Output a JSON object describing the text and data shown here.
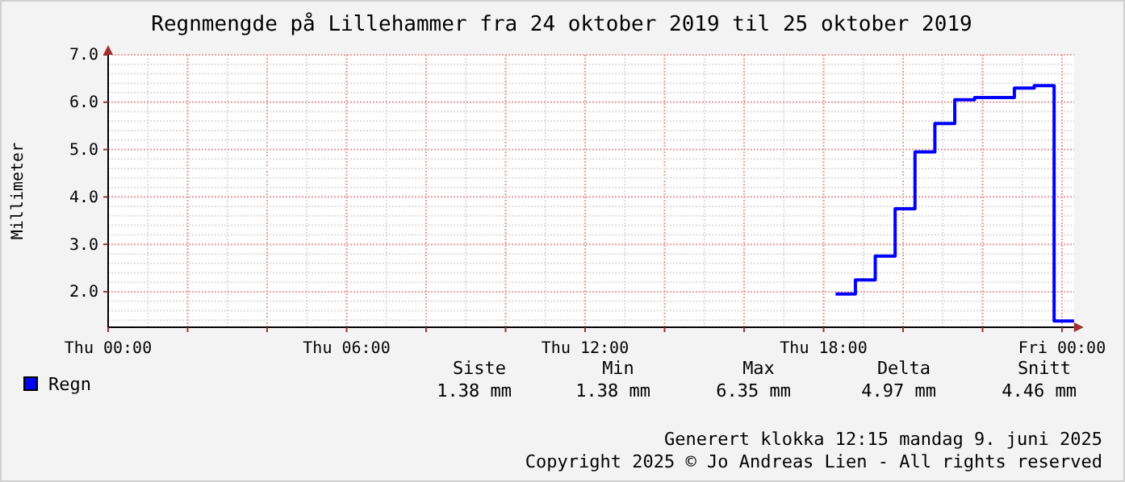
{
  "chart_data": {
    "type": "step",
    "title": "Regnmengde på Lillehammer fra 24 oktober 2019 til 25 oktober 2019",
    "ylabel": "Millimeter",
    "x": [
      "2019-10-24T18:18",
      "2019-10-24T18:48",
      "2019-10-24T19:18",
      "2019-10-24T19:48",
      "2019-10-24T20:18",
      "2019-10-24T20:48",
      "2019-10-24T21:18",
      "2019-10-24T21:48",
      "2019-10-24T22:18",
      "2019-10-24T22:48",
      "2019-10-24T23:18",
      "2019-10-24T23:48",
      "2019-10-25T00:18"
    ],
    "series": [
      {
        "name": "Regn",
        "color": "#0000ff",
        "values": [
          1.95,
          2.25,
          2.75,
          3.75,
          4.95,
          5.55,
          6.05,
          6.1,
          6.1,
          6.3,
          6.35,
          1.38,
          1.38
        ]
      }
    ],
    "xlim": [
      "2019-10-24T00:00",
      "2019-10-25T00:18"
    ],
    "xticks": [
      {
        "value": "2019-10-24T00:00",
        "label": "Thu 00:00"
      },
      {
        "value": "2019-10-24T02:00",
        "label": null
      },
      {
        "value": "2019-10-24T04:00",
        "label": null
      },
      {
        "value": "2019-10-24T06:00",
        "label": "Thu 06:00"
      },
      {
        "value": "2019-10-24T08:00",
        "label": null
      },
      {
        "value": "2019-10-24T10:00",
        "label": null
      },
      {
        "value": "2019-10-24T12:00",
        "label": "Thu 12:00"
      },
      {
        "value": "2019-10-24T14:00",
        "label": null
      },
      {
        "value": "2019-10-24T16:00",
        "label": null
      },
      {
        "value": "2019-10-24T18:00",
        "label": "Thu 18:00"
      },
      {
        "value": "2019-10-24T20:00",
        "label": null
      },
      {
        "value": "2019-10-24T22:00",
        "label": null
      },
      {
        "value": "2019-10-25T00:00",
        "label": "Fri 00:00"
      }
    ],
    "ylim": [
      1.25,
      7.0
    ],
    "yticks": [
      {
        "value": 2,
        "label": "2.0"
      },
      {
        "value": 3,
        "label": "3.0"
      },
      {
        "value": 4,
        "label": "4.0"
      },
      {
        "value": 5,
        "label": "5.0"
      },
      {
        "value": 6,
        "label": "6.0"
      },
      {
        "value": 7,
        "label": "7.0"
      }
    ],
    "grid": true,
    "legend": "bottom",
    "line_style": "solid",
    "marker": "none",
    "annotations": [
      "Siste",
      "Min",
      "Max",
      "Delta",
      "Snitt",
      "1.38 mm",
      "1.38 mm",
      "6.35 mm",
      "4.97 mm",
      "4.46 mm",
      "Generert klokka 12:15 mandag 9. juni 2025",
      "Copyright 2025 © Jo Andreas Lien - All rights reserved"
    ]
  }
}
